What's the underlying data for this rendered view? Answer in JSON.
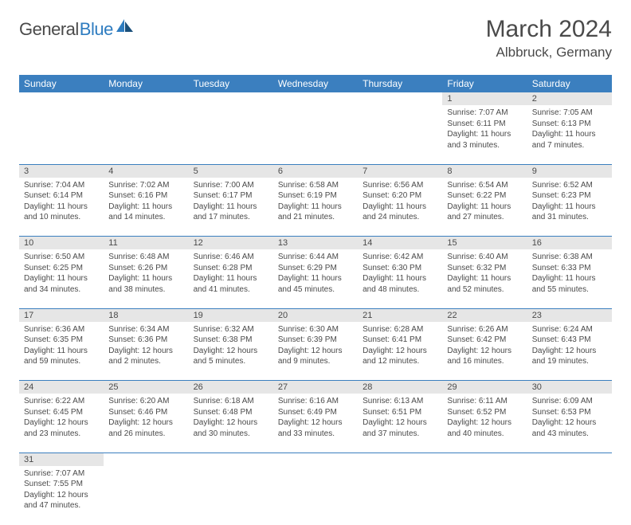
{
  "brand": {
    "word1": "General",
    "word2": "Blue"
  },
  "title": "March 2024",
  "location": "Albbruck, Germany",
  "colors": {
    "header_bg": "#3b7fbf",
    "header_text": "#ffffff",
    "daynum_bg": "#e6e6e6",
    "row_border": "#3b7fbf",
    "body_text": "#4a4a4a",
    "brand_blue": "#2e7cc0"
  },
  "weekdays": [
    "Sunday",
    "Monday",
    "Tuesday",
    "Wednesday",
    "Thursday",
    "Friday",
    "Saturday"
  ],
  "weeks": [
    [
      null,
      null,
      null,
      null,
      null,
      {
        "n": "1",
        "sr": "Sunrise: 7:07 AM",
        "ss": "Sunset: 6:11 PM",
        "d1": "Daylight: 11 hours",
        "d2": "and 3 minutes."
      },
      {
        "n": "2",
        "sr": "Sunrise: 7:05 AM",
        "ss": "Sunset: 6:13 PM",
        "d1": "Daylight: 11 hours",
        "d2": "and 7 minutes."
      }
    ],
    [
      {
        "n": "3",
        "sr": "Sunrise: 7:04 AM",
        "ss": "Sunset: 6:14 PM",
        "d1": "Daylight: 11 hours",
        "d2": "and 10 minutes."
      },
      {
        "n": "4",
        "sr": "Sunrise: 7:02 AM",
        "ss": "Sunset: 6:16 PM",
        "d1": "Daylight: 11 hours",
        "d2": "and 14 minutes."
      },
      {
        "n": "5",
        "sr": "Sunrise: 7:00 AM",
        "ss": "Sunset: 6:17 PM",
        "d1": "Daylight: 11 hours",
        "d2": "and 17 minutes."
      },
      {
        "n": "6",
        "sr": "Sunrise: 6:58 AM",
        "ss": "Sunset: 6:19 PM",
        "d1": "Daylight: 11 hours",
        "d2": "and 21 minutes."
      },
      {
        "n": "7",
        "sr": "Sunrise: 6:56 AM",
        "ss": "Sunset: 6:20 PM",
        "d1": "Daylight: 11 hours",
        "d2": "and 24 minutes."
      },
      {
        "n": "8",
        "sr": "Sunrise: 6:54 AM",
        "ss": "Sunset: 6:22 PM",
        "d1": "Daylight: 11 hours",
        "d2": "and 27 minutes."
      },
      {
        "n": "9",
        "sr": "Sunrise: 6:52 AM",
        "ss": "Sunset: 6:23 PM",
        "d1": "Daylight: 11 hours",
        "d2": "and 31 minutes."
      }
    ],
    [
      {
        "n": "10",
        "sr": "Sunrise: 6:50 AM",
        "ss": "Sunset: 6:25 PM",
        "d1": "Daylight: 11 hours",
        "d2": "and 34 minutes."
      },
      {
        "n": "11",
        "sr": "Sunrise: 6:48 AM",
        "ss": "Sunset: 6:26 PM",
        "d1": "Daylight: 11 hours",
        "d2": "and 38 minutes."
      },
      {
        "n": "12",
        "sr": "Sunrise: 6:46 AM",
        "ss": "Sunset: 6:28 PM",
        "d1": "Daylight: 11 hours",
        "d2": "and 41 minutes."
      },
      {
        "n": "13",
        "sr": "Sunrise: 6:44 AM",
        "ss": "Sunset: 6:29 PM",
        "d1": "Daylight: 11 hours",
        "d2": "and 45 minutes."
      },
      {
        "n": "14",
        "sr": "Sunrise: 6:42 AM",
        "ss": "Sunset: 6:30 PM",
        "d1": "Daylight: 11 hours",
        "d2": "and 48 minutes."
      },
      {
        "n": "15",
        "sr": "Sunrise: 6:40 AM",
        "ss": "Sunset: 6:32 PM",
        "d1": "Daylight: 11 hours",
        "d2": "and 52 minutes."
      },
      {
        "n": "16",
        "sr": "Sunrise: 6:38 AM",
        "ss": "Sunset: 6:33 PM",
        "d1": "Daylight: 11 hours",
        "d2": "and 55 minutes."
      }
    ],
    [
      {
        "n": "17",
        "sr": "Sunrise: 6:36 AM",
        "ss": "Sunset: 6:35 PM",
        "d1": "Daylight: 11 hours",
        "d2": "and 59 minutes."
      },
      {
        "n": "18",
        "sr": "Sunrise: 6:34 AM",
        "ss": "Sunset: 6:36 PM",
        "d1": "Daylight: 12 hours",
        "d2": "and 2 minutes."
      },
      {
        "n": "19",
        "sr": "Sunrise: 6:32 AM",
        "ss": "Sunset: 6:38 PM",
        "d1": "Daylight: 12 hours",
        "d2": "and 5 minutes."
      },
      {
        "n": "20",
        "sr": "Sunrise: 6:30 AM",
        "ss": "Sunset: 6:39 PM",
        "d1": "Daylight: 12 hours",
        "d2": "and 9 minutes."
      },
      {
        "n": "21",
        "sr": "Sunrise: 6:28 AM",
        "ss": "Sunset: 6:41 PM",
        "d1": "Daylight: 12 hours",
        "d2": "and 12 minutes."
      },
      {
        "n": "22",
        "sr": "Sunrise: 6:26 AM",
        "ss": "Sunset: 6:42 PM",
        "d1": "Daylight: 12 hours",
        "d2": "and 16 minutes."
      },
      {
        "n": "23",
        "sr": "Sunrise: 6:24 AM",
        "ss": "Sunset: 6:43 PM",
        "d1": "Daylight: 12 hours",
        "d2": "and 19 minutes."
      }
    ],
    [
      {
        "n": "24",
        "sr": "Sunrise: 6:22 AM",
        "ss": "Sunset: 6:45 PM",
        "d1": "Daylight: 12 hours",
        "d2": "and 23 minutes."
      },
      {
        "n": "25",
        "sr": "Sunrise: 6:20 AM",
        "ss": "Sunset: 6:46 PM",
        "d1": "Daylight: 12 hours",
        "d2": "and 26 minutes."
      },
      {
        "n": "26",
        "sr": "Sunrise: 6:18 AM",
        "ss": "Sunset: 6:48 PM",
        "d1": "Daylight: 12 hours",
        "d2": "and 30 minutes."
      },
      {
        "n": "27",
        "sr": "Sunrise: 6:16 AM",
        "ss": "Sunset: 6:49 PM",
        "d1": "Daylight: 12 hours",
        "d2": "and 33 minutes."
      },
      {
        "n": "28",
        "sr": "Sunrise: 6:13 AM",
        "ss": "Sunset: 6:51 PM",
        "d1": "Daylight: 12 hours",
        "d2": "and 37 minutes."
      },
      {
        "n": "29",
        "sr": "Sunrise: 6:11 AM",
        "ss": "Sunset: 6:52 PM",
        "d1": "Daylight: 12 hours",
        "d2": "and 40 minutes."
      },
      {
        "n": "30",
        "sr": "Sunrise: 6:09 AM",
        "ss": "Sunset: 6:53 PM",
        "d1": "Daylight: 12 hours",
        "d2": "and 43 minutes."
      }
    ],
    [
      {
        "n": "31",
        "sr": "Sunrise: 7:07 AM",
        "ss": "Sunset: 7:55 PM",
        "d1": "Daylight: 12 hours",
        "d2": "and 47 minutes."
      },
      null,
      null,
      null,
      null,
      null,
      null
    ]
  ]
}
